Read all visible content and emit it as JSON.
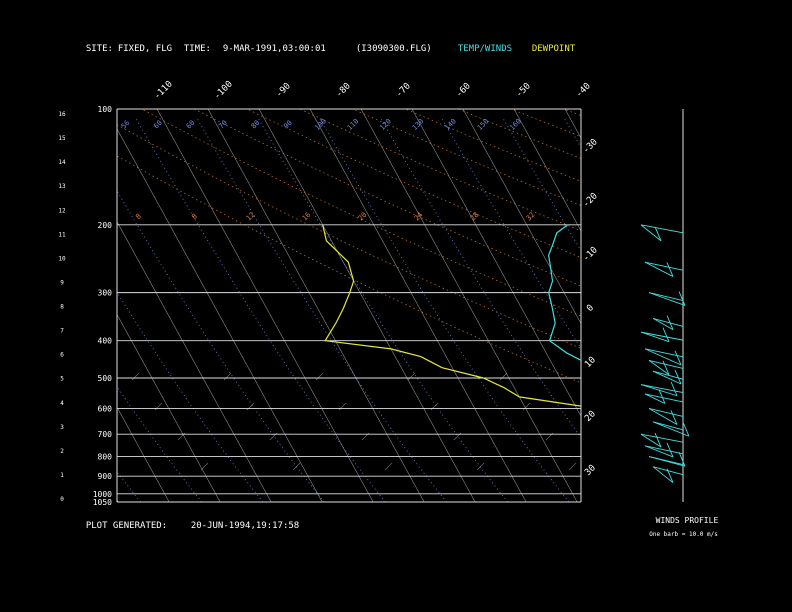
{
  "header": {
    "site_label": "SITE:",
    "site_value": "FIXED, FLG",
    "time_label": "TIME:",
    "time_value": "9-MAR-1991,03:00:01",
    "file_value": "(I3090300.FLG)",
    "temp_legend": "TEMP/WINDS",
    "dewpoint_legend": "DEWPOINT"
  },
  "footer": {
    "plot_generated_label": "PLOT GENERATED:",
    "plot_generated_value": "20-JUN-1994,19:17:58",
    "winds_profile_label": "WINDS PROFILE",
    "barb_note": "One barb = 10.0 m/s"
  },
  "colors": {
    "temperature": "#3fe0e0",
    "dewpoint": "#e8e838",
    "mixing_ratio": "#6f8fe8",
    "dry_adiabat": "#e08040",
    "isotherm": "#c8c8c8",
    "isobar": "#e0e0e0"
  },
  "chart_data": {
    "type": "line",
    "title": "",
    "xlabel": "",
    "ylabel": "",
    "pressure_axis": {
      "ticks": [
        100,
        200,
        300,
        400,
        500,
        600,
        700,
        800,
        900,
        1000,
        1050
      ],
      "tick_labels": [
        "100",
        "200",
        "300",
        "400",
        "500",
        "600",
        "700",
        "800",
        "900",
        "1000",
        "1050"
      ],
      "ylim": [
        1050,
        100
      ]
    },
    "height_axis": {
      "tick_labels": [
        "16",
        "15",
        "14",
        "13",
        "12",
        "11",
        "10",
        "9",
        "8",
        "7",
        "6",
        "5",
        "4",
        "3",
        "2",
        "1",
        "0"
      ]
    },
    "isotherm_labels_top": [
      "-110",
      "-100",
      "-90",
      "-80",
      "-70",
      "-60",
      "-50",
      "-40"
    ],
    "isotherm_labels_right": [
      "-30",
      "-20",
      "-10",
      "0",
      "10",
      "20",
      "30"
    ],
    "mixing_ratio_labels_top": [
      "56",
      "60",
      "60",
      "70",
      "80",
      "90",
      "100",
      "110",
      "120",
      "130",
      "140",
      "150",
      "160"
    ],
    "dry_adiabat_labels": [
      "8",
      "8",
      "12",
      "16",
      "20",
      "24",
      "28",
      "32"
    ],
    "series": [
      {
        "name": "TEMP/WINDS",
        "points": [
          [
            200,
            -52
          ],
          [
            210,
            -55
          ],
          [
            225,
            -57
          ],
          [
            240,
            -59
          ],
          [
            260,
            -60
          ],
          [
            280,
            -61
          ],
          [
            300,
            -63
          ],
          [
            330,
            -64
          ],
          [
            360,
            -65
          ],
          [
            400,
            -68
          ],
          [
            430,
            -66
          ],
          [
            470,
            -62
          ],
          [
            500,
            -58
          ],
          [
            550,
            -54
          ],
          [
            600,
            -47
          ],
          [
            650,
            -41
          ],
          [
            700,
            -36
          ],
          [
            750,
            -30
          ],
          [
            800,
            -22
          ],
          [
            830,
            -18
          ],
          [
            850,
            -22
          ],
          [
            860,
            -25
          ],
          [
            870,
            -19
          ],
          [
            880,
            -14
          ],
          [
            900,
            -18
          ]
        ]
      },
      {
        "name": "DEWPOINT",
        "points": [
          [
            200,
            -100
          ],
          [
            220,
            -101
          ],
          [
            250,
            -99
          ],
          [
            280,
            -100
          ],
          [
            300,
            -102
          ],
          [
            330,
            -105
          ],
          [
            360,
            -108
          ],
          [
            400,
            -112
          ],
          [
            420,
            -100
          ],
          [
            440,
            -95
          ],
          [
            470,
            -92
          ],
          [
            500,
            -85
          ],
          [
            530,
            -82
          ],
          [
            560,
            -80
          ],
          [
            600,
            -66
          ],
          [
            650,
            -60
          ],
          [
            700,
            -55
          ],
          [
            750,
            -45
          ],
          [
            800,
            -40
          ],
          [
            850,
            -32
          ],
          [
            880,
            -35
          ]
        ]
      }
    ],
    "winds_profile": {
      "pressures": [
        200,
        250,
        300,
        350,
        380,
        420,
        450,
        480,
        520,
        550,
        600,
        650,
        700,
        750,
        800,
        850
      ]
    }
  }
}
